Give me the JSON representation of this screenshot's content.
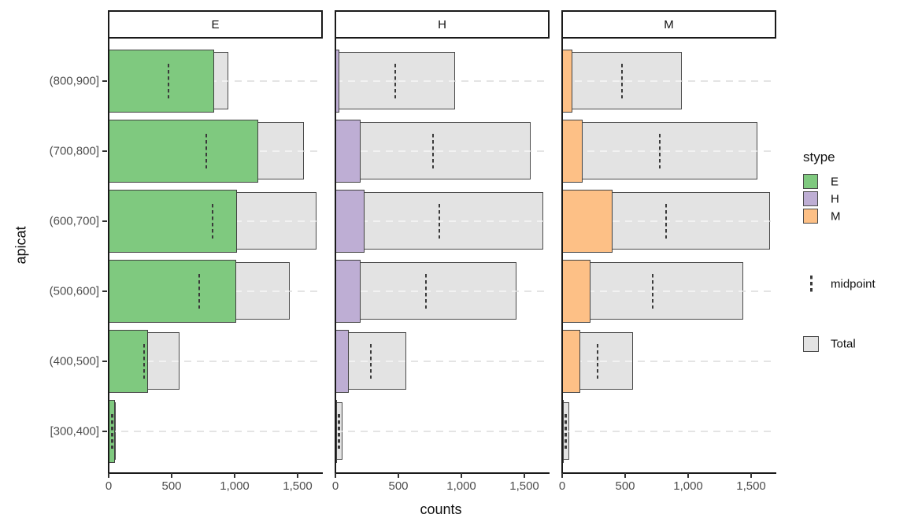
{
  "chart_data": {
    "type": "bar",
    "orientation": "horizontal",
    "title": "",
    "xlabel": "counts",
    "ylabel": "apicat",
    "facets": [
      "E",
      "H",
      "M"
    ],
    "categories": [
      "(800,900]",
      "(700,800]",
      "(600,700]",
      "(500,600]",
      "(400,500]",
      "[300,400]"
    ],
    "totals": [
      950,
      1550,
      1650,
      1440,
      560,
      55
    ],
    "series": [
      {
        "name": "E",
        "color": "#7fc97f",
        "values": [
          840,
          1190,
          1020,
          1015,
          310,
          50
        ]
      },
      {
        "name": "H",
        "color": "#beaed4",
        "values": [
          30,
          200,
          230,
          200,
          105,
          3
        ]
      },
      {
        "name": "M",
        "color": "#fdc086",
        "values": [
          80,
          160,
          400,
          225,
          145,
          2
        ]
      }
    ],
    "midpoints": [
      475,
      775,
      825,
      720,
      280,
      27.5
    ],
    "midpoint_rule": "midpoint = total / 2",
    "x_ticks": [
      0,
      500,
      1000,
      1500
    ],
    "x_tick_labels": [
      "0",
      "500",
      "1,000",
      "1,500"
    ],
    "xlim": [
      0,
      1693
    ],
    "grid": "dashed-horizontal-major-y",
    "legend_position": "right",
    "legend": {
      "title": "stype",
      "entries": [
        {
          "label": "E",
          "color": "#7fc97f"
        },
        {
          "label": "H",
          "color": "#beaed4"
        },
        {
          "label": "M",
          "color": "#fdc086"
        }
      ],
      "midpoint_label": "midpoint",
      "total_label": "Total"
    },
    "colors": {
      "total_fill": "#e3e3e3",
      "bar_border": "#4a4a4a",
      "gridline": "#e4e4e4",
      "axis_line": "#1a1a1a",
      "tick_text": "#4d4d4d",
      "strip_background": "#ffffff",
      "strip_border": "#1a1a1a"
    }
  }
}
